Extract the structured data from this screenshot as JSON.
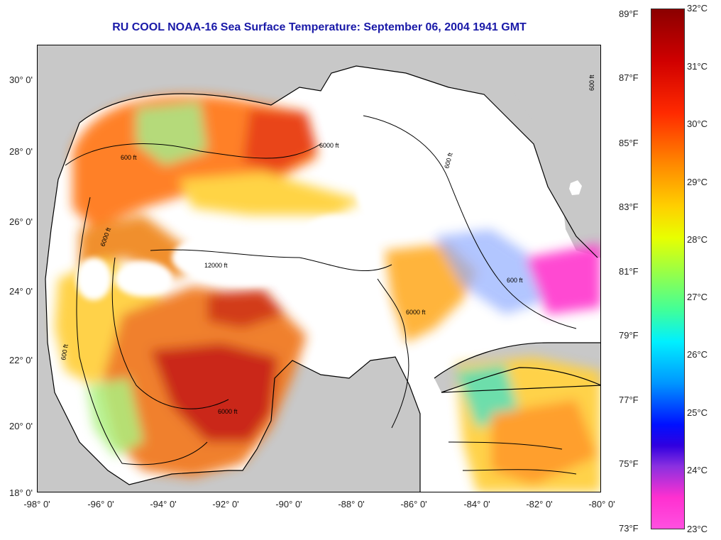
{
  "title": "RU COOL  NOAA-16  Sea Surface Temperature:  September 06, 2004 1941 GMT",
  "colors": {
    "land": "#c8c8c8",
    "no_data": "#ffffff",
    "border": "#000000",
    "title": "#1a1aa8"
  },
  "latitude_labels": [
    "30° 0'",
    "28° 0'",
    "26° 0'",
    "24° 0'",
    "22° 0'",
    "20° 0'",
    "18° 0'"
  ],
  "longitude_labels": [
    "-98° 0'",
    "-96° 0'",
    "-94° 0'",
    "-92° 0'",
    "-90° 0'",
    "-88° 0'",
    "-86° 0'",
    "-84° 0'",
    "-82° 0'",
    "-80° 0'"
  ],
  "colorbar": {
    "fahrenheit_labels": [
      "89°F",
      "87°F",
      "85°F",
      "83°F",
      "81°F",
      "79°F",
      "77°F",
      "75°F",
      "73°F"
    ],
    "celsius_labels": [
      "32°C",
      "31°C",
      "30°C",
      "29°C",
      "28°C",
      "27°C",
      "26°C",
      "25°C",
      "24°C",
      "23°C"
    ]
  },
  "contour_labels": [
    "600 ft",
    "6000 ft",
    "12000 ft",
    "600 ft",
    "6000 ft",
    "600 ft",
    "6000 ft",
    "6000 ft",
    "600 ft",
    "600 ft"
  ]
}
